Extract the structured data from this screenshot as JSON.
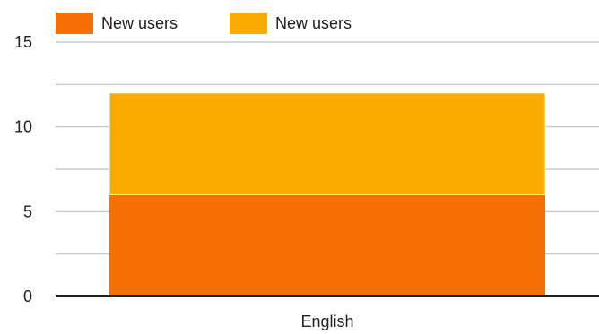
{
  "chart_data": {
    "type": "bar",
    "stacked": true,
    "title": "",
    "xlabel": "",
    "ylabel": "",
    "categories": [
      "English"
    ],
    "series": [
      {
        "name": "New users",
        "values": [
          6
        ],
        "color": "#f57105"
      },
      {
        "name": "New users",
        "values": [
          6
        ],
        "color": "#fbaa00"
      }
    ],
    "ylim": [
      0,
      15
    ],
    "yticks": [
      "0",
      "5",
      "10",
      "15"
    ],
    "grid": true,
    "legend": "top-left"
  }
}
